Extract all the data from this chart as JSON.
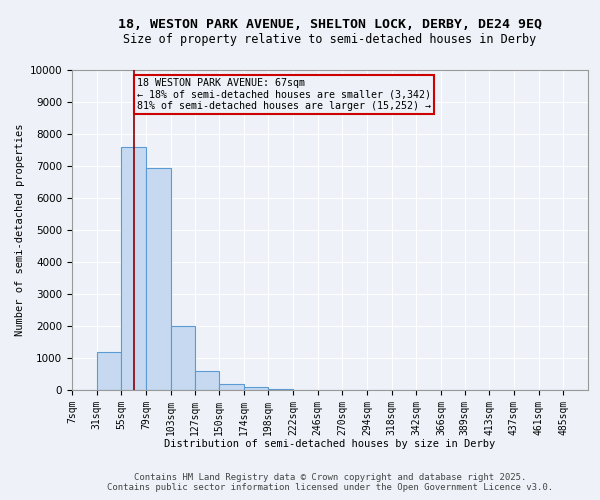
{
  "title1": "18, WESTON PARK AVENUE, SHELTON LOCK, DERBY, DE24 9EQ",
  "title2": "Size of property relative to semi-detached houses in Derby",
  "xlabel": "Distribution of semi-detached houses by size in Derby",
  "ylabel": "Number of semi-detached properties",
  "annotation_line1": "18 WESTON PARK AVENUE: 67sqm",
  "annotation_line2": "← 18% of semi-detached houses are smaller (3,342)",
  "annotation_line3": "81% of semi-detached houses are larger (15,252) →",
  "footer1": "Contains HM Land Registry data © Crown copyright and database right 2025.",
  "footer2": "Contains public sector information licensed under the Open Government Licence v3.0.",
  "property_size": 67,
  "bar_categories": [
    "7sqm",
    "31sqm",
    "55sqm",
    "79sqm",
    "103sqm",
    "127sqm",
    "150sqm",
    "174sqm",
    "198sqm",
    "222sqm",
    "246sqm",
    "270sqm",
    "294sqm",
    "318sqm",
    "342sqm",
    "366sqm",
    "389sqm",
    "413sqm",
    "437sqm",
    "461sqm",
    "485sqm"
  ],
  "bar_left_edges": [
    7,
    31,
    55,
    79,
    103,
    127,
    150,
    174,
    198,
    222,
    246,
    270,
    294,
    318,
    342,
    366,
    389,
    413,
    437,
    461,
    485
  ],
  "bar_heights": [
    0,
    1200,
    7600,
    6950,
    2000,
    580,
    200,
    80,
    25,
    10,
    5,
    3,
    2,
    1,
    1,
    0,
    0,
    0,
    0,
    0,
    0
  ],
  "bar_color": "#c6d9f0",
  "bar_edge_color": "#5b9bd5",
  "vline_color": "#8b0000",
  "vline_x": 67,
  "annotation_box_color": "#cc0000",
  "ylim": [
    0,
    10000
  ],
  "yticks": [
    0,
    1000,
    2000,
    3000,
    4000,
    5000,
    6000,
    7000,
    8000,
    9000,
    10000
  ],
  "xlim_left": 7,
  "xlim_right": 509,
  "background_color": "#eef2f8",
  "grid_color": "#ffffff",
  "title1_fontsize": 9.5,
  "title2_fontsize": 8.5,
  "footer_fontsize": 6.5,
  "axis_label_fontsize": 7.5,
  "tick_fontsize": 7,
  "ylabel_fontsize": 7.5
}
